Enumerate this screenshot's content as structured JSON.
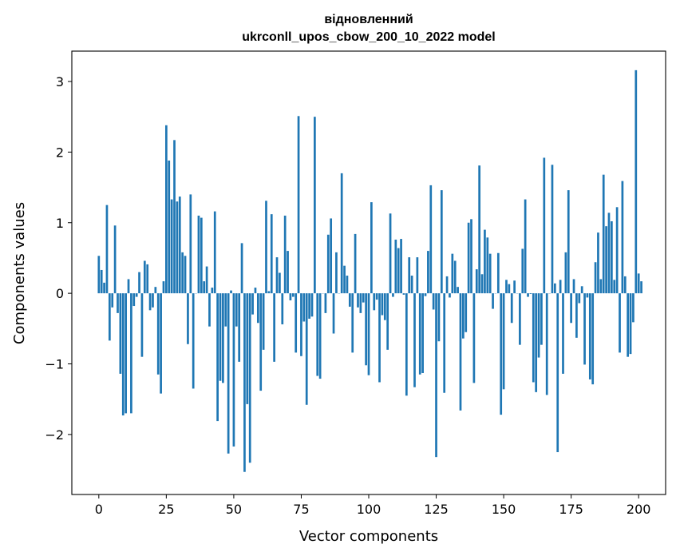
{
  "chart_data": {
    "type": "bar",
    "title": "відновленний",
    "subtitle": "ukrconll_upos_cbow_200_10_2022 model",
    "xlabel": "Vector components",
    "ylabel": "Components values",
    "xlim": [
      -10,
      210
    ],
    "ylim": [
      -2.85,
      3.43
    ],
    "xticks": [
      0,
      25,
      50,
      75,
      100,
      125,
      150,
      175,
      200
    ],
    "yticks": [
      -2,
      -1,
      0,
      1,
      2,
      3
    ],
    "xtick_labels": [
      "0",
      "25",
      "50",
      "75",
      "100",
      "125",
      "150",
      "175",
      "200"
    ],
    "ytick_labels": [
      "−2",
      "−1",
      "0",
      "1",
      "2",
      "3"
    ],
    "bar_color": "#1f77b4",
    "grid": false,
    "values": [
      0.53,
      0.33,
      0.15,
      1.25,
      -0.67,
      -0.2,
      0.96,
      -0.28,
      -1.14,
      -1.73,
      -1.7,
      0.2,
      -1.7,
      -0.18,
      -0.05,
      0.3,
      -0.9,
      0.46,
      0.41,
      -0.24,
      -0.2,
      0.09,
      -1.15,
      -1.42,
      0.17,
      2.38,
      1.88,
      1.33,
      2.17,
      1.3,
      1.37,
      0.58,
      0.53,
      -0.72,
      1.4,
      -1.35,
      0.0,
      1.1,
      1.07,
      0.17,
      0.38,
      -0.47,
      0.08,
      1.16,
      -1.81,
      -1.24,
      -1.27,
      -0.47,
      -2.27,
      0.04,
      -2.17,
      -0.47,
      -0.97,
      0.71,
      -2.53,
      -1.57,
      -2.4,
      -0.3,
      0.08,
      -0.42,
      -1.38,
      -0.8,
      1.31,
      0.03,
      1.12,
      -0.97,
      0.51,
      0.29,
      -0.44,
      1.1,
      0.6,
      -0.1,
      -0.05,
      -0.84,
      2.51,
      -0.89,
      -0.4,
      -1.58,
      -0.36,
      -0.33,
      2.5,
      -1.17,
      -1.21,
      0.0,
      -0.28,
      0.83,
      1.06,
      -0.57,
      0.58,
      0.0,
      1.7,
      0.39,
      0.25,
      -0.19,
      -0.84,
      0.84,
      -0.2,
      -0.28,
      -0.13,
      -1.02,
      -1.16,
      1.29,
      -0.24,
      -0.09,
      -1.26,
      -0.31,
      -0.38,
      -0.8,
      1.13,
      -0.05,
      0.76,
      0.64,
      0.77,
      -0.02,
      -1.45,
      0.51,
      0.25,
      -1.33,
      0.51,
      -1.15,
      -1.13,
      -0.04,
      0.6,
      1.53,
      -0.23,
      -2.32,
      -0.68,
      1.46,
      -1.41,
      0.24,
      -0.06,
      0.56,
      0.46,
      0.09,
      -1.66,
      -0.64,
      -0.55,
      1.0,
      1.05,
      -1.27,
      0.34,
      1.81,
      0.27,
      0.9,
      0.79,
      0.56,
      -0.22,
      0.0,
      0.57,
      -1.72,
      -1.36,
      0.19,
      0.13,
      -0.42,
      0.18,
      0.0,
      -0.73,
      0.63,
      1.33,
      -0.05,
      -0.01,
      -1.26,
      -1.4,
      -0.91,
      -0.73,
      1.92,
      -1.44,
      0.0,
      1.82,
      0.14,
      -2.25,
      0.19,
      -1.14,
      0.58,
      1.46,
      -0.42,
      0.2,
      -0.63,
      -0.14,
      0.1,
      -1.01,
      -0.06,
      -1.22,
      -1.29,
      0.44,
      0.86,
      0.2,
      1.68,
      0.95,
      1.14,
      1.02,
      0.19,
      1.22,
      -0.84,
      1.59,
      0.24,
      -0.9,
      -0.86,
      -0.41,
      3.16,
      0.28,
      0.17
    ]
  }
}
